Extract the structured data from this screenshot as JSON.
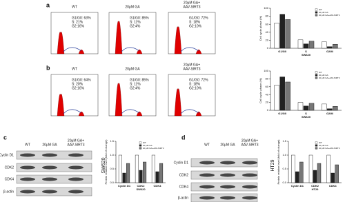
{
  "panel_labels": [
    "a",
    "b",
    "c",
    "d"
  ],
  "flow_rows": [
    {
      "panels": [
        {
          "title": [
            "WT"
          ],
          "stats": [
            "G1/G0: 63%",
            "S: 21%",
            "G2:16%"
          ]
        },
        {
          "title": [
            "20μM GA"
          ],
          "stats": [
            "G1/G0: 85%",
            "S: 11%",
            "G2:4%"
          ]
        },
        {
          "title": [
            "20μM GA+",
            "AAV-SIRT3"
          ],
          "stats": [
            "G1/G0: 72%",
            "S: 18%",
            "G2:10%"
          ]
        }
      ]
    },
    {
      "panels": [
        {
          "title": [
            "WT"
          ],
          "stats": [
            "G1/G0: 64%",
            "S: 20%",
            "G2:16%"
          ]
        },
        {
          "title": [
            "20μM GA"
          ],
          "stats": [
            "G1/G0: 85%",
            "S: 11%",
            "G2:4%"
          ]
        },
        {
          "title": [
            "20μM GA+",
            "AAV-SIRT3"
          ],
          "stats": [
            "G1/G0: 72%",
            "S: 18%",
            "G2:10%"
          ]
        }
      ]
    }
  ],
  "blots": [
    {
      "columns": [
        [
          "WT"
        ],
        [
          "20μM GA"
        ],
        [
          "20μM GA+",
          "AAV-SIRT3"
        ]
      ],
      "rows": [
        "Cyclin D1",
        "CDK2",
        "CDK4",
        "β-actin"
      ],
      "side_label": "SW620"
    },
    {
      "columns": [
        [
          "WT"
        ],
        [
          "20μM GA"
        ],
        [
          "20μM GA+",
          "AAV-SIRT3"
        ]
      ],
      "rows": [
        "Cyclin D1",
        "CDK2",
        "CDK4",
        "β-actin"
      ],
      "side_label": "HT29"
    }
  ],
  "chart_data": [
    {
      "type": "bar",
      "ylabel": "Cell cycle phase (%)",
      "xlabel": "SW620",
      "categories": [
        "G1/G0",
        "S",
        "G2/M"
      ],
      "series": [
        {
          "name": "WT",
          "color": "#ffffff",
          "values": [
            63,
            21,
            16
          ]
        },
        {
          "name": "20 μM GA",
          "color": "#222222",
          "values": [
            85,
            11,
            4
          ]
        },
        {
          "name": "20 μM GA+AAV-SIRT3",
          "color": "#777777",
          "values": [
            72,
            18,
            10
          ]
        }
      ],
      "ylim": [
        0,
        100
      ],
      "yticks": [
        0,
        20,
        40,
        60,
        80,
        100
      ],
      "legend": "upper-right"
    },
    {
      "type": "bar",
      "ylabel": "Cell cycle phase (%)",
      "xlabel": "SW620",
      "categories": [
        "G1/G0",
        "S",
        "G2/M"
      ],
      "series": [
        {
          "name": "WT",
          "color": "#ffffff",
          "values": [
            64,
            20,
            16
          ]
        },
        {
          "name": "20 μM GA",
          "color": "#222222",
          "values": [
            85,
            11,
            4
          ]
        },
        {
          "name": "20 μM GA+AAV-SIRT3",
          "color": "#777777",
          "values": [
            72,
            18,
            10
          ]
        }
      ],
      "ylim": [
        0,
        100
      ],
      "yticks": [
        0,
        20,
        40,
        60,
        80,
        100
      ],
      "legend": "upper-right"
    },
    {
      "type": "bar",
      "ylabel": "Protein relative level (fold of change)",
      "xlabel": "SW620",
      "categories": [
        "Cyclin D1",
        "CDK2",
        "CDK4"
      ],
      "series": [
        {
          "name": "WT",
          "color": "#ffffff",
          "values": [
            1,
            1,
            1
          ]
        },
        {
          "name": "20 μM GA",
          "color": "#222222",
          "values": [
            0.35,
            0.45,
            0.4
          ]
        },
        {
          "name": "20 μM GA+AAV-SIRT3",
          "color": "#777777",
          "values": [
            0.7,
            0.75,
            0.7
          ]
        }
      ],
      "ylim": [
        0,
        1.5
      ],
      "yticks": [
        {
          "value": 0,
          "label": "0.0"
        },
        0.5,
        {
          "value": 1,
          "label": "1.0"
        },
        1.5
      ],
      "legend": "upper-right"
    },
    {
      "type": "bar",
      "ylabel": "Protein relative level (fold of change)",
      "xlabel": "HT29",
      "categories": [
        "Cyclin D1",
        "CDK2",
        "CDK4"
      ],
      "series": [
        {
          "name": "WT",
          "color": "#ffffff",
          "values": [
            1,
            1,
            1
          ]
        },
        {
          "name": "20 μM GA",
          "color": "#222222",
          "values": [
            0.4,
            0.45,
            0.35
          ]
        },
        {
          "name": "20 μM GA+AAV-SIRT3",
          "color": "#777777",
          "values": [
            0.75,
            0.7,
            0.65
          ]
        }
      ],
      "ylim": [
        0,
        1.5
      ],
      "yticks": [
        {
          "value": 0,
          "label": "0.0"
        },
        0.5,
        {
          "value": 1,
          "label": "1.0"
        },
        1.5
      ],
      "legend": "upper-right"
    }
  ]
}
